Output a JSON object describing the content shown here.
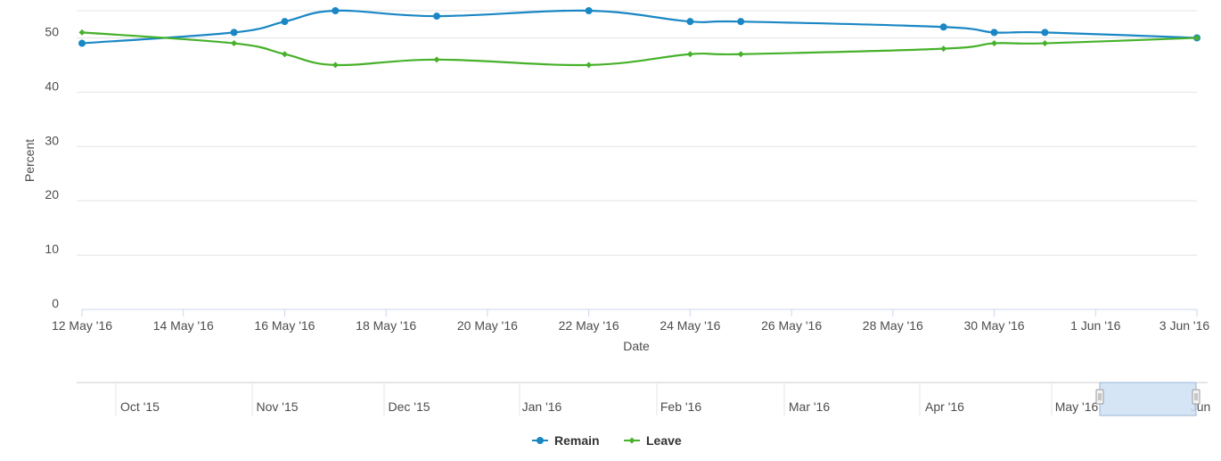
{
  "chart_data": {
    "type": "line",
    "title": "",
    "xlabel": "Date",
    "ylabel": "Percent",
    "ylim": [
      0,
      55
    ],
    "y_ticks": [
      0,
      10,
      20,
      30,
      40,
      50
    ],
    "x_range_days": [
      0,
      22
    ],
    "x_ticks": [
      {
        "day": 0,
        "label": "12 May '16"
      },
      {
        "day": 2,
        "label": "14 May '16"
      },
      {
        "day": 4,
        "label": "16 May '16"
      },
      {
        "day": 6,
        "label": "18 May '16"
      },
      {
        "day": 8,
        "label": "20 May '16"
      },
      {
        "day": 10,
        "label": "22 May '16"
      },
      {
        "day": 12,
        "label": "24 May '16"
      },
      {
        "day": 14,
        "label": "26 May '16"
      },
      {
        "day": 16,
        "label": "28 May '16"
      },
      {
        "day": 18,
        "label": "30 May '16"
      },
      {
        "day": 20,
        "label": "1 Jun '16"
      },
      {
        "day": 22,
        "label": "3 Jun '16"
      }
    ],
    "series": [
      {
        "name": "Remain",
        "color": "#1a87c4",
        "marker": "circle",
        "points": [
          {
            "day": 0,
            "value": 49
          },
          {
            "day": 3,
            "value": 51
          },
          {
            "day": 4,
            "value": 53
          },
          {
            "day": 5,
            "value": 55
          },
          {
            "day": 7,
            "value": 54
          },
          {
            "day": 10,
            "value": 55
          },
          {
            "day": 12,
            "value": 53
          },
          {
            "day": 13,
            "value": 53
          },
          {
            "day": 17,
            "value": 52
          },
          {
            "day": 18,
            "value": 51
          },
          {
            "day": 19,
            "value": 51
          },
          {
            "day": 22,
            "value": 50
          }
        ]
      },
      {
        "name": "Leave",
        "color": "#46b12a",
        "marker": "diamond",
        "points": [
          {
            "day": 0,
            "value": 51
          },
          {
            "day": 3,
            "value": 49
          },
          {
            "day": 4,
            "value": 47
          },
          {
            "day": 5,
            "value": 45
          },
          {
            "day": 7,
            "value": 46
          },
          {
            "day": 10,
            "value": 45
          },
          {
            "day": 12,
            "value": 47
          },
          {
            "day": 13,
            "value": 47
          },
          {
            "day": 17,
            "value": 48
          },
          {
            "day": 18,
            "value": 49
          },
          {
            "day": 19,
            "value": 49
          },
          {
            "day": 22,
            "value": 50
          }
        ]
      }
    ],
    "navigator": {
      "labels": [
        "Oct '15",
        "Nov '15",
        "Dec '15",
        "Jan '16",
        "Feb '16",
        "Mar '16",
        "Apr '16",
        "May '16",
        "Jun"
      ],
      "selected_range": [
        "12 May '16",
        "3 Jun '16"
      ]
    },
    "legend": {
      "position": "bottom-center",
      "items": [
        "Remain",
        "Leave"
      ]
    }
  }
}
